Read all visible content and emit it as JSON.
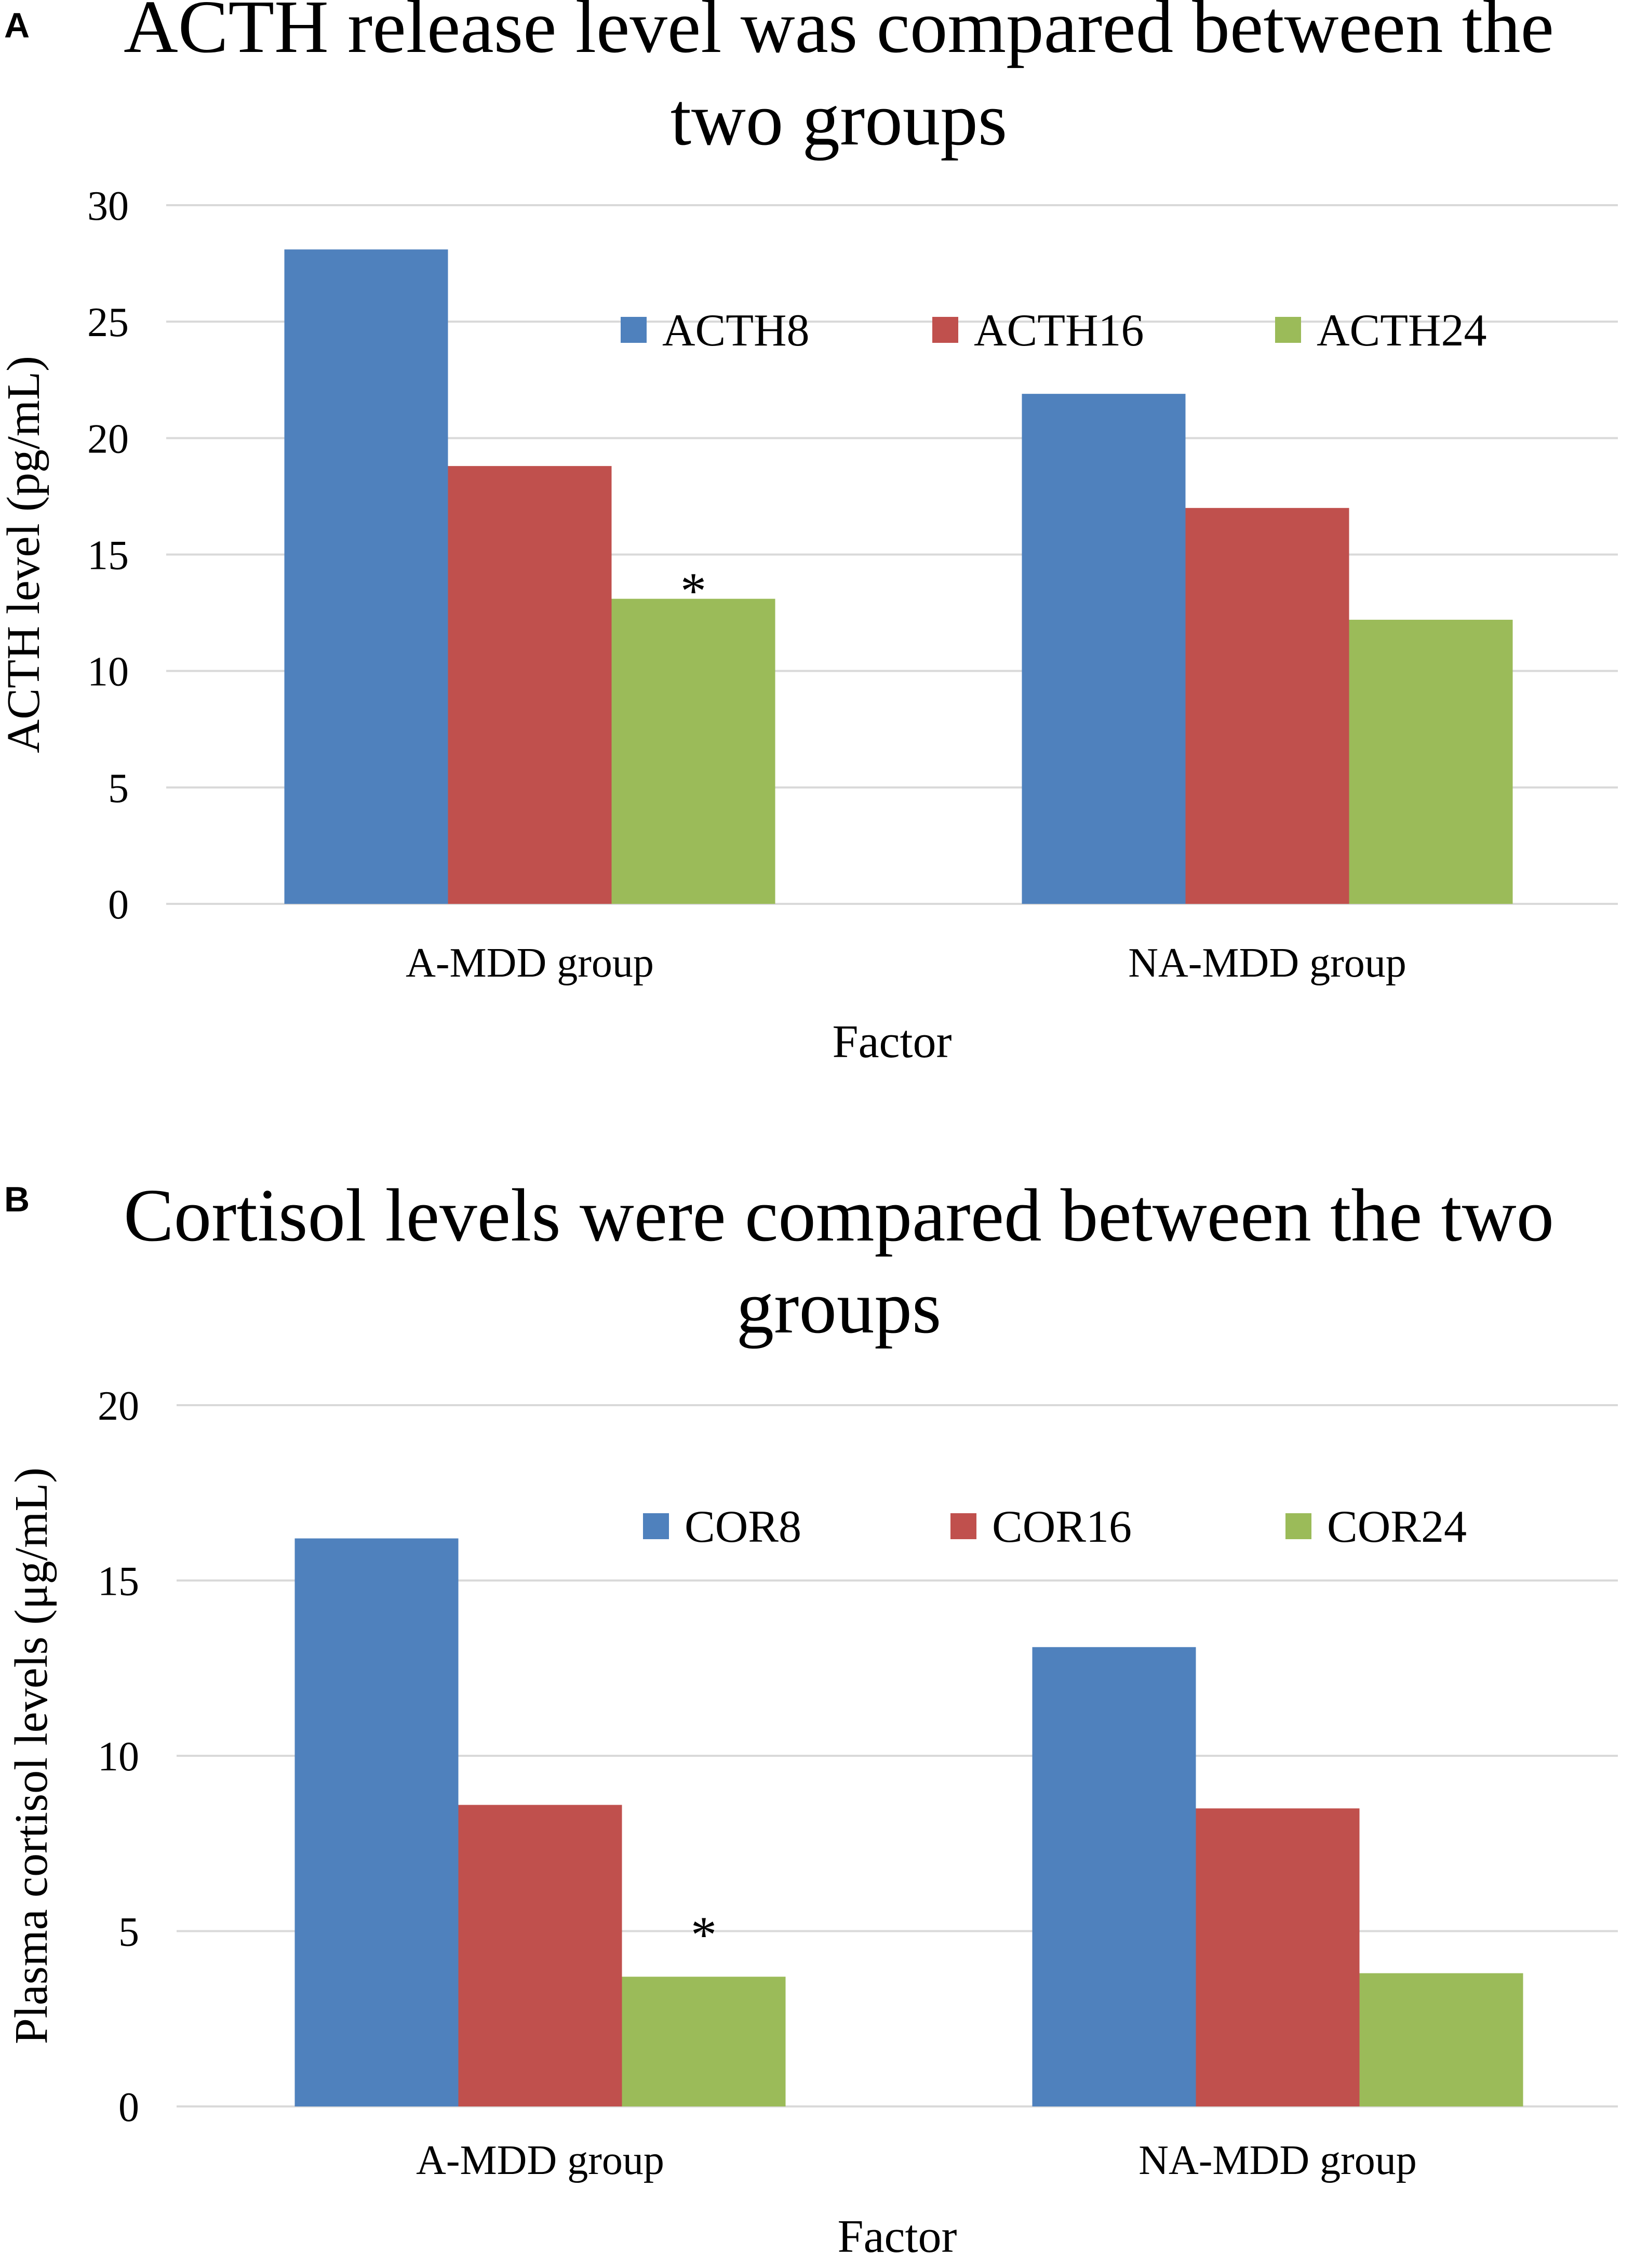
{
  "chart_data": [
    {
      "panel_label": "A",
      "type": "bar",
      "title_lines": [
        "ACTH release level was compared between the",
        "two groups"
      ],
      "xlabel": "Factor",
      "ylabel": "ACTH level (pg/mL)",
      "ylim": [
        0,
        30
      ],
      "yticks": [
        "0",
        "5",
        "10",
        "15",
        "20",
        "25",
        "30"
      ],
      "grid": true,
      "legend_position": "top-right",
      "categories": [
        "A-MDD group",
        "NA-MDD group"
      ],
      "series": [
        {
          "name": "ACTH8",
          "color": "#4f81bd",
          "values": [
            28.1,
            21.9
          ]
        },
        {
          "name": "ACTH16",
          "color": "#c0504d",
          "values": [
            18.8,
            17.0
          ]
        },
        {
          "name": "ACTH24",
          "color": "#9bbb59",
          "values": [
            13.1,
            12.2
          ]
        }
      ],
      "annotations": [
        {
          "text": "*",
          "category": "A-MDD group",
          "series": "ACTH24"
        }
      ]
    },
    {
      "panel_label": "B",
      "type": "bar",
      "title_lines": [
        "Cortisol levels were compared between the two",
        "groups"
      ],
      "xlabel": "Factor",
      "ylabel": "Plasma cortisol levels (μg/mL)",
      "ylim": [
        0,
        20
      ],
      "yticks": [
        "0",
        "5",
        "10",
        "15",
        "20"
      ],
      "grid": true,
      "legend_position": "top-right",
      "categories": [
        "A-MDD group",
        "NA-MDD group"
      ],
      "series": [
        {
          "name": "COR8",
          "color": "#4f81bd",
          "values": [
            16.2,
            13.1
          ]
        },
        {
          "name": "COR16",
          "color": "#c0504d",
          "values": [
            8.6,
            8.5
          ]
        },
        {
          "name": "COR24",
          "color": "#9bbb59",
          "values": [
            3.7,
            3.8
          ]
        }
      ],
      "annotations": [
        {
          "text": "*",
          "category": "A-MDD group",
          "series": "COR24"
        }
      ]
    }
  ]
}
